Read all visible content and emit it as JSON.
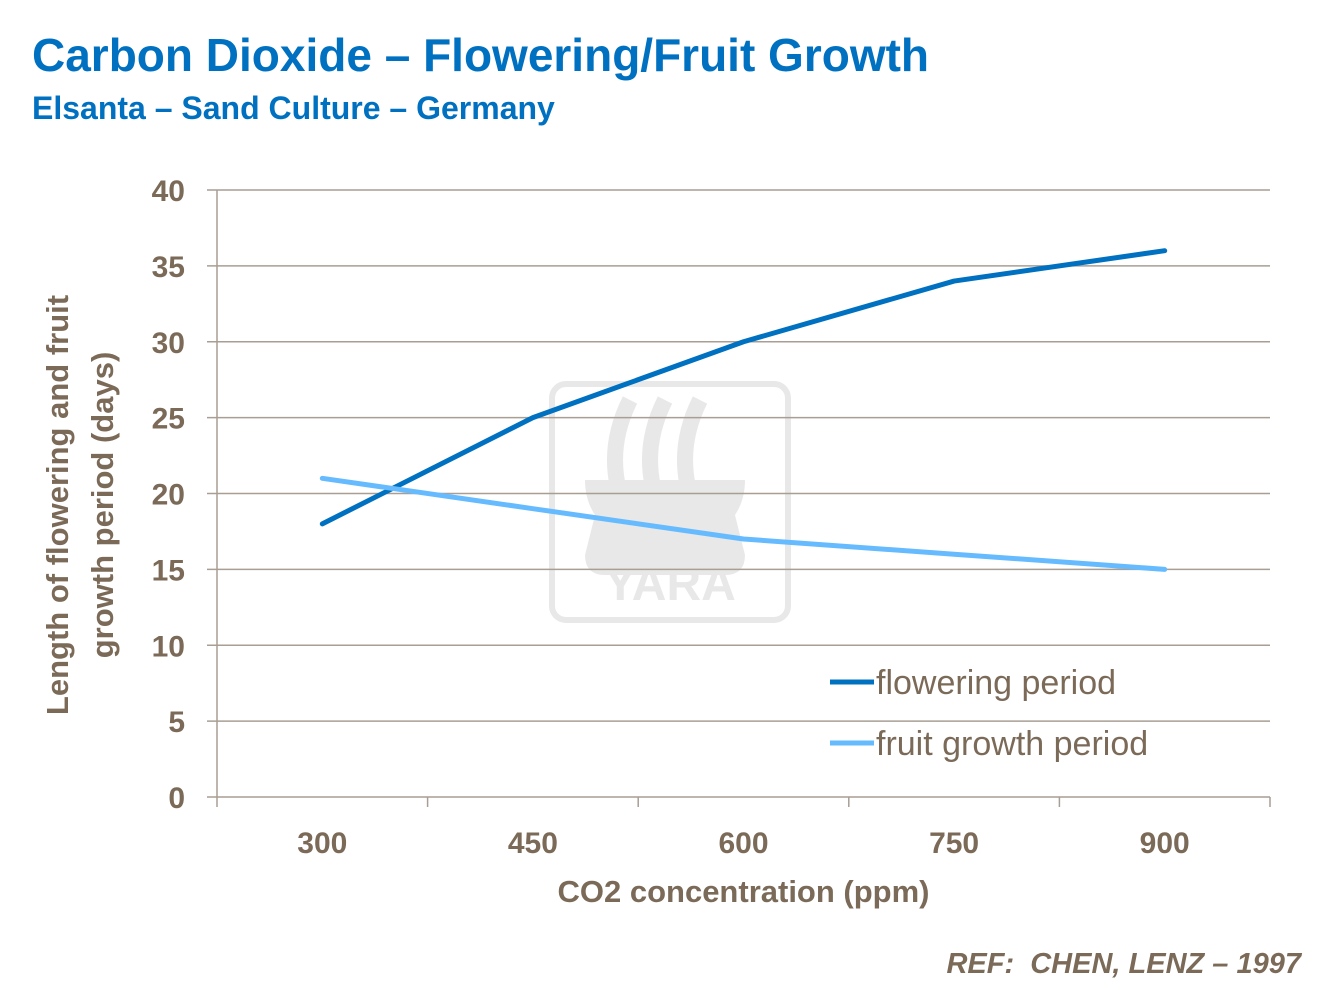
{
  "header": {
    "title": "Carbon Dioxide – Flowering/Fruit Growth",
    "subtitle": "Elsanta – Sand Culture – Germany"
  },
  "reference": "REF:  CHEN, LENZ – 1997",
  "watermark": {
    "logo_text": "YARA"
  },
  "chart_data": {
    "type": "line",
    "xlabel": "CO2 concentration (ppm)",
    "ylabel_lines": [
      "Length of flowering and fruit",
      "growth period (days)"
    ],
    "categories": [
      "300",
      "450",
      "600",
      "750",
      "900"
    ],
    "ylim": [
      0,
      40
    ],
    "yticks": [
      "0",
      "5",
      "10",
      "15",
      "20",
      "25",
      "30",
      "35",
      "40"
    ],
    "grid": true,
    "legend_position": "bottom-right",
    "series": [
      {
        "name": "flowering period",
        "color": "#0070C0",
        "values": [
          18,
          25,
          30,
          34,
          36
        ]
      },
      {
        "name": "fruit growth period",
        "color": "#66BBFF",
        "values": [
          21,
          19,
          17,
          16,
          15
        ]
      }
    ]
  }
}
